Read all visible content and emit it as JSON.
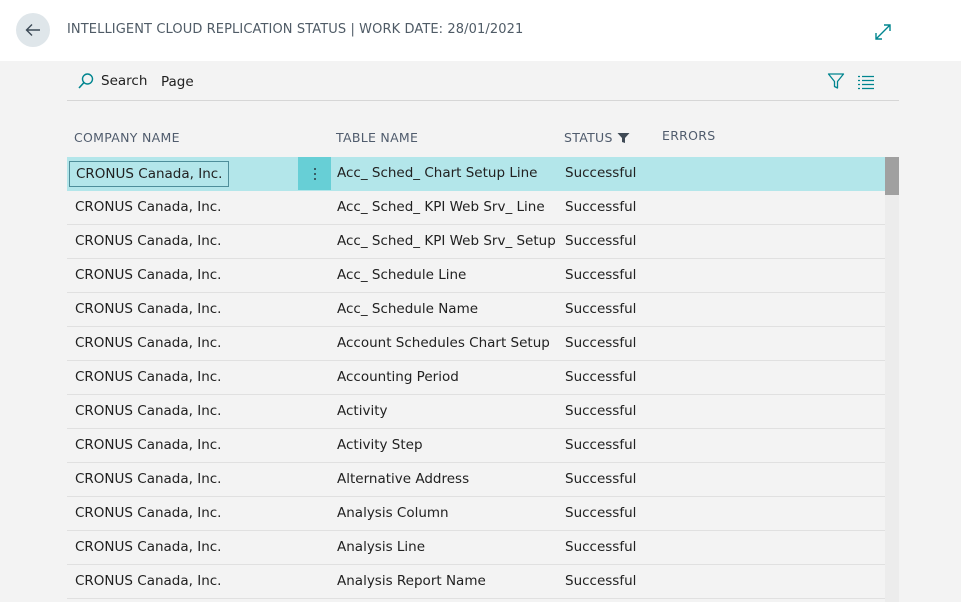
{
  "header": {
    "title": "INTELLIGENT CLOUD REPLICATION STATUS | WORK DATE: 28/01/2021",
    "back_icon": "arrow-left-icon",
    "expand_icon": "expand-diagonal-icon"
  },
  "actionbar": {
    "search_label": "Search",
    "page_label": "Page",
    "filter_icon": "filter-icon",
    "list_icon": "list-view-icon"
  },
  "columns": {
    "company": "COMPANY NAME",
    "table": "TABLE NAME",
    "status": "STATUS",
    "errors": "ERRORS"
  },
  "rows": [
    {
      "company": "CRONUS Canada, Inc.",
      "table": "Acc_ Sched_ Chart Setup Line",
      "status": "Successful",
      "errors": ""
    },
    {
      "company": "CRONUS Canada, Inc.",
      "table": "Acc_ Sched_ KPI Web Srv_ Line",
      "status": "Successful",
      "errors": ""
    },
    {
      "company": "CRONUS Canada, Inc.",
      "table": "Acc_ Sched_ KPI Web Srv_ Setup",
      "status": "Successful",
      "errors": ""
    },
    {
      "company": "CRONUS Canada, Inc.",
      "table": "Acc_ Schedule Line",
      "status": "Successful",
      "errors": ""
    },
    {
      "company": "CRONUS Canada, Inc.",
      "table": "Acc_ Schedule Name",
      "status": "Successful",
      "errors": ""
    },
    {
      "company": "CRONUS Canada, Inc.",
      "table": "Account Schedules Chart Setup",
      "status": "Successful",
      "errors": ""
    },
    {
      "company": "CRONUS Canada, Inc.",
      "table": "Accounting Period",
      "status": "Successful",
      "errors": ""
    },
    {
      "company": "CRONUS Canada, Inc.",
      "table": "Activity",
      "status": "Successful",
      "errors": ""
    },
    {
      "company": "CRONUS Canada, Inc.",
      "table": "Activity Step",
      "status": "Successful",
      "errors": ""
    },
    {
      "company": "CRONUS Canada, Inc.",
      "table": "Alternative Address",
      "status": "Successful",
      "errors": ""
    },
    {
      "company": "CRONUS Canada, Inc.",
      "table": "Analysis Column",
      "status": "Successful",
      "errors": ""
    },
    {
      "company": "CRONUS Canada, Inc.",
      "table": "Analysis Line",
      "status": "Successful",
      "errors": ""
    },
    {
      "company": "CRONUS Canada, Inc.",
      "table": "Analysis Report Name",
      "status": "Successful",
      "errors": ""
    }
  ],
  "colors": {
    "selected_row": "#b3e6ea",
    "row_menu": "#67cfd6",
    "accent": "#00a3ad"
  }
}
